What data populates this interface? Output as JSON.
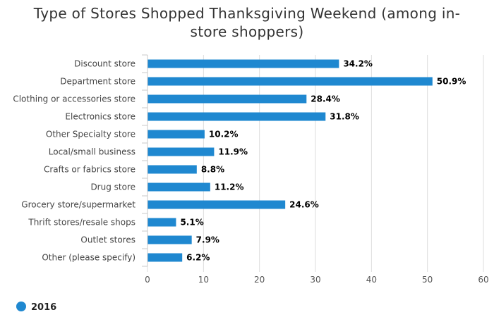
{
  "chart_data": {
    "type": "bar",
    "orientation": "horizontal",
    "title_lines": [
      "Type of Stores Shopped Thanksgiving Weekend (among in-",
      "store shoppers)"
    ],
    "categories": [
      "Discount store",
      "Department store",
      "Clothing or accessories store",
      "Electronics store",
      "Other Specialty store",
      "Local/small business",
      "Crafts or fabrics store",
      "Drug store",
      "Grocery store/supermarket",
      "Thrift stores/resale shops",
      "Outlet stores",
      "Other (please specify)"
    ],
    "series": [
      {
        "name": "2016",
        "color": "#1f88d0",
        "values": [
          34.2,
          50.9,
          28.4,
          31.8,
          10.2,
          11.9,
          8.8,
          11.2,
          24.6,
          5.1,
          7.9,
          6.2
        ],
        "labels": [
          "34.2%",
          "50.9%",
          "28.4%",
          "31.8%",
          "10.2%",
          "11.9%",
          "8.8%",
          "11.2%",
          "24.6%",
          "5.1%",
          "7.9%",
          "6.2%"
        ]
      }
    ],
    "xlim": [
      0,
      60
    ],
    "xticks": [
      0,
      10,
      20,
      30,
      40,
      50,
      60
    ],
    "grid": true,
    "legend_position": "bottom-left"
  }
}
